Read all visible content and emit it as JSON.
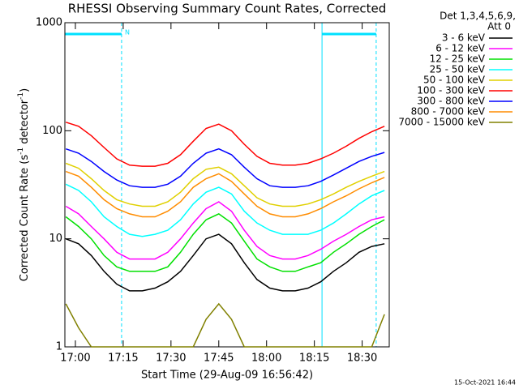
{
  "chart_data": {
    "type": "line",
    "title": "RHESSI Observing Summary Count Rates, Corrected",
    "ylabel": [
      "Corrected Count Rate (s",
      "-1",
      " detector",
      "-1",
      ")"
    ],
    "xlabel": "Start Time (29-Aug-09 16:56:42)",
    "legend_header": [
      "Det 1,3,4,5,6,9,",
      "Att 0"
    ],
    "footer": "15-Oct-2021 16:44",
    "flag_label": "N",
    "night_intervals": [
      [
        -3.3,
        14.5
      ],
      [
        77.4,
        94.4
      ]
    ],
    "log_y": true,
    "xlim": [
      -3.3,
      98.5
    ],
    "ylim": [
      1,
      1000
    ],
    "yticks": [
      1,
      10,
      100,
      1000
    ],
    "xticks": [
      {
        "value": 0,
        "label": "17:00"
      },
      {
        "value": 15,
        "label": "17:15"
      },
      {
        "value": 30,
        "label": "17:30"
      },
      {
        "value": 45,
        "label": "17:45"
      },
      {
        "value": 60,
        "label": "18:00"
      },
      {
        "value": 75,
        "label": "18:15"
      },
      {
        "value": 90,
        "label": "18:30"
      }
    ],
    "x": [
      -3,
      1,
      5,
      9,
      13,
      17,
      21,
      25,
      29,
      33,
      37,
      41,
      45,
      49,
      53,
      57,
      61,
      65,
      69,
      73,
      77,
      81,
      85,
      89,
      93,
      97
    ],
    "series": [
      {
        "name": "3 - 6 keV",
        "color": "#000000",
        "values": [
          10,
          9,
          7,
          5,
          3.8,
          3.3,
          3.3,
          3.5,
          4,
          5,
          7,
          10,
          11,
          9,
          6,
          4.2,
          3.5,
          3.3,
          3.3,
          3.5,
          4,
          5,
          6,
          7.5,
          8.5,
          9
        ]
      },
      {
        "name": "6 - 12 keV",
        "color": "#ff00ff",
        "values": [
          20,
          17,
          13,
          10,
          7.5,
          6.5,
          6.5,
          6.5,
          7.5,
          10,
          14,
          19,
          22,
          18,
          12,
          8.5,
          7,
          6.5,
          6.5,
          7,
          8,
          9.5,
          11,
          13,
          15,
          16
        ]
      },
      {
        "name": "12 - 25 keV",
        "color": "#00e000",
        "values": [
          16,
          13,
          10,
          7,
          5.5,
          5,
          5,
          5,
          5.5,
          7.5,
          11,
          15,
          17,
          14,
          9.5,
          6.5,
          5.5,
          5,
          5,
          5.5,
          6,
          7.5,
          9,
          11,
          13,
          15
        ]
      },
      {
        "name": "25 - 50 keV",
        "color": "#00ffff",
        "values": [
          32,
          28,
          22,
          16,
          13,
          11,
          10.5,
          11,
          12,
          15,
          21,
          27,
          30,
          26,
          18,
          14,
          12,
          11,
          11,
          11,
          12,
          14,
          17,
          21,
          25,
          28
        ]
      },
      {
        "name": "50 - 100 keV",
        "color": "#e0d000",
        "values": [
          50,
          45,
          36,
          28,
          23,
          21,
          20,
          20,
          22,
          27,
          36,
          44,
          46,
          40,
          31,
          24,
          21,
          20,
          20,
          21,
          23,
          26,
          30,
          34,
          38,
          42
        ]
      },
      {
        "name": "100 - 300 keV",
        "color": "#ff0000",
        "values": [
          120,
          110,
          90,
          70,
          55,
          48,
          47,
          47,
          50,
          60,
          80,
          105,
          115,
          100,
          75,
          58,
          50,
          48,
          48,
          50,
          55,
          62,
          72,
          85,
          98,
          110
        ]
      },
      {
        "name": "300 - 800 keV",
        "color": "#0000ff",
        "values": [
          68,
          62,
          52,
          42,
          35,
          31,
          30,
          30,
          32,
          38,
          50,
          62,
          68,
          60,
          46,
          36,
          31,
          30,
          30,
          31,
          34,
          39,
          45,
          52,
          58,
          63
        ]
      },
      {
        "name": "800 - 7000 keV",
        "color": "#ff8c00",
        "values": [
          42,
          38,
          30,
          23,
          19,
          17,
          16,
          16,
          18,
          22,
          30,
          36,
          40,
          34,
          26,
          20,
          17,
          16,
          16,
          17,
          19,
          22,
          25,
          29,
          33,
          37
        ]
      },
      {
        "name": "7000 - 15000 keV",
        "color": "#808000",
        "values": [
          2.5,
          1.5,
          1,
          1,
          1,
          1,
          1,
          1,
          1,
          1,
          1,
          1.8,
          2.5,
          1.8,
          1,
          1,
          1,
          1,
          1,
          1,
          1,
          1,
          1,
          1,
          1,
          2
        ]
      }
    ]
  }
}
